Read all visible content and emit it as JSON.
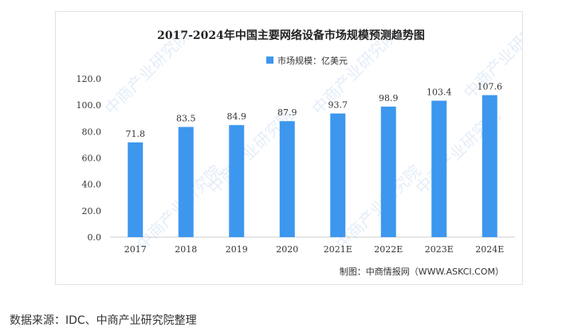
{
  "chart_data": {
    "type": "bar",
    "title": "2017-2024年中国主要网络设备市场规模预测趋势图",
    "legend": {
      "label": "市场规模：亿美元",
      "position": "top-left"
    },
    "categories": [
      "2017",
      "2018",
      "2019",
      "2020",
      "2021E",
      "2022E",
      "2023E",
      "2024E"
    ],
    "values": [
      71.8,
      83.5,
      84.9,
      87.9,
      93.7,
      98.9,
      103.4,
      107.6
    ],
    "value_labels": [
      "71.8",
      "83.5",
      "84.9",
      "87.9",
      "93.7",
      "98.9",
      "103.4",
      "107.6"
    ],
    "yticks": [
      "0.0",
      "20.0",
      "40.0",
      "60.0",
      "80.0",
      "100.0",
      "120.0"
    ],
    "ylim": [
      0,
      120
    ],
    "grid": false,
    "bar_color": "#3d97ee",
    "source_note": "制图：中商情报网（WWW.ASKCI.COM）"
  },
  "footer": {
    "source_text": "数据来源：IDC、中商产业研究院整理"
  },
  "watermark": {
    "text": "中商产业研究院",
    "color": "#cfe0f3"
  }
}
